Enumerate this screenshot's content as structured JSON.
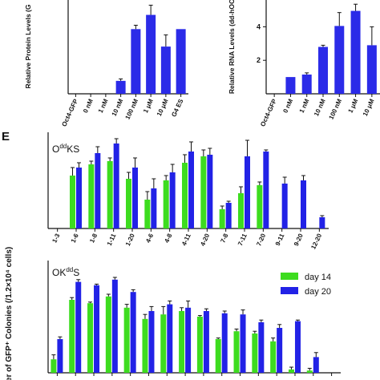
{
  "panel_label": "E",
  "shared_ylabel": "ber of GFP⁺ Colonies (/1.2×10⁴ cells)",
  "chart_data": [
    {
      "type": "bar",
      "ylabel": "Relative Protein Levels (G",
      "categories": [
        "Oct4-GFP",
        "0 nM",
        "1 nM",
        "10 nM",
        "100 nM",
        "1 μM",
        "10 μM",
        "G4 ES"
      ],
      "series": [
        {
          "color": "#2b2be8",
          "values": [
            0,
            0,
            0,
            0.2,
            1.0,
            1.22,
            0.73,
            1.0
          ],
          "errors": [
            0,
            0,
            0,
            0.03,
            0.06,
            0.15,
            0.18,
            0
          ]
        }
      ],
      "ylim": [
        0,
        1.45
      ]
    },
    {
      "type": "bar",
      "ylabel": "Relative RNA Levels (dd-hOC",
      "categories": [
        "Oct4-GFP",
        "0 nM",
        "1 nM",
        "10 nM",
        "100 nM",
        "1 μM",
        "10 μM"
      ],
      "series": [
        {
          "color": "#2b2be8",
          "values": [
            0,
            1.0,
            1.15,
            2.8,
            4.05,
            4.95,
            2.9
          ],
          "errors": [
            0,
            0,
            0.1,
            0.1,
            0.8,
            0.4,
            1.1
          ]
        }
      ],
      "ylim": [
        0,
        5.6
      ],
      "yticks": [
        2,
        4
      ]
    },
    {
      "type": "bar",
      "title": {
        "base": "O",
        "sup": "dd",
        "rest": "KS"
      },
      "categories": [
        "1-3",
        "1-6",
        "1-8",
        "1-11",
        "1-20",
        "4-6",
        "4-8",
        "4-11",
        "4-20",
        "7-8",
        "7-11",
        "7-20",
        "9-11",
        "9-20",
        "12-20"
      ],
      "series": [
        {
          "name": "day 14",
          "color": "#3ddc1f",
          "values": [
            0,
            33,
            40,
            42,
            31,
            18,
            30,
            41,
            45,
            12,
            22,
            27,
            0,
            0,
            0
          ],
          "errors": [
            0,
            5,
            2,
            2,
            4,
            5,
            3,
            5,
            4,
            2,
            4,
            2,
            0,
            0,
            0
          ]
        },
        {
          "name": "day 20",
          "color": "#2222e6",
          "values": [
            0,
            38,
            47,
            53,
            38,
            25,
            35,
            48,
            46,
            16,
            45,
            48,
            28,
            30,
            7
          ],
          "errors": [
            0,
            3,
            4,
            3,
            6,
            6,
            5,
            6,
            4,
            1,
            10,
            1,
            4,
            3,
            1
          ]
        }
      ],
      "ylim": [
        0,
        60
      ]
    },
    {
      "type": "bar",
      "title": {
        "base": "OK",
        "sup": "dd",
        "rest": "S"
      },
      "categories": [
        null,
        null,
        null,
        null,
        null,
        null,
        null,
        null,
        null,
        null,
        null,
        null,
        null,
        null,
        null,
        null
      ],
      "series": [
        {
          "name": "day 14",
          "color": "#3ddc1f",
          "values": [
            12,
            65,
            62,
            68,
            58,
            48,
            52,
            55,
            50,
            30,
            37,
            35,
            28,
            3,
            2,
            0
          ],
          "errors": [
            4,
            2,
            1,
            2,
            3,
            4,
            7,
            3,
            1,
            1,
            2,
            2,
            3,
            2,
            2,
            0
          ]
        },
        {
          "name": "day 20",
          "color": "#2222e6",
          "values": [
            30,
            81,
            78,
            83,
            72,
            55,
            61,
            58,
            55,
            53,
            52,
            45,
            40,
            46,
            14,
            0
          ],
          "errors": [
            2,
            2,
            1,
            2,
            2,
            4,
            3,
            6,
            2,
            2,
            4,
            2,
            3,
            1,
            4,
            0
          ]
        }
      ],
      "ylim": [
        0,
        100
      ],
      "legend": "upper right"
    }
  ]
}
